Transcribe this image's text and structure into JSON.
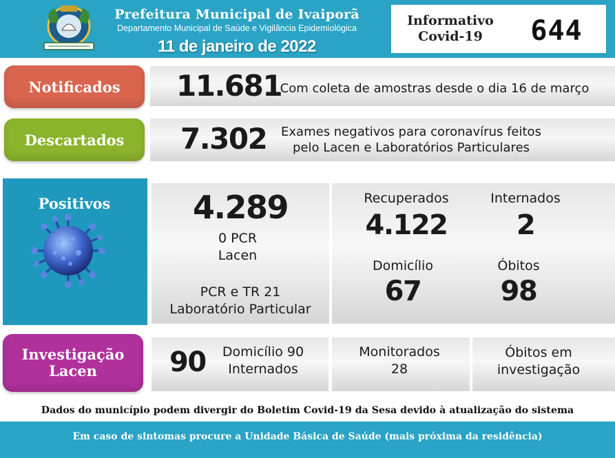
{
  "header": {
    "title": "Prefeitura Municipal de Ivaiporã",
    "subtitle": "Departamento Municipal de Saúde e Vigilância Epidemiológica",
    "date": "11 de janeiro de 2022",
    "informativo_label_line1": "Informativo",
    "informativo_label_line2": "Covid-19",
    "informativo_number": "644"
  },
  "notificados": {
    "label": "Notificados",
    "value": "11.681",
    "description": "Com coleta de amostras desde o dia 16 de março",
    "color": "#d9654f"
  },
  "descartados": {
    "label": "Descartados",
    "value": "7.302",
    "description_line1": "Exames negativos para coronavírus feitos",
    "description_line2": "pelo Lacen e Laboratórios Particulares",
    "color": "#8bb42c"
  },
  "positivos": {
    "label": "Positivos",
    "value": "4.289",
    "pcr_lacen_line1": "0 PCR",
    "pcr_lacen_line2": "Lacen",
    "pcr_particular_line1": "PCR e  TR 21",
    "pcr_particular_line2": "Laboratório Particular",
    "color": "#1f98bd"
  },
  "outcomes": {
    "recuperados_label": "Recuperados",
    "recuperados_value": "4.122",
    "internados_label": "Internados",
    "internados_value": "2",
    "domicilio_label": "Domicílio",
    "domicilio_value": "67",
    "obitos_label": "Óbitos",
    "obitos_value": "98"
  },
  "investigacao": {
    "label_line1": "Investigação",
    "label_line2": "Lacen",
    "value": "90",
    "domicilio_line": "Domicílio 90",
    "internados_line": "Internados",
    "monitorados_label": "Monitorados",
    "monitorados_value": "28",
    "obitos_line1": "Óbitos em",
    "obitos_line2": "investigação",
    "color": "#b0309c"
  },
  "footer": {
    "note": "Dados do município podem divergir do Boletim Covid-19 da Sesa devido à atualização do sistema",
    "banner": "Em caso de sintomas procure a Unidade Básica de Saúde (mais próxima da residência)"
  }
}
